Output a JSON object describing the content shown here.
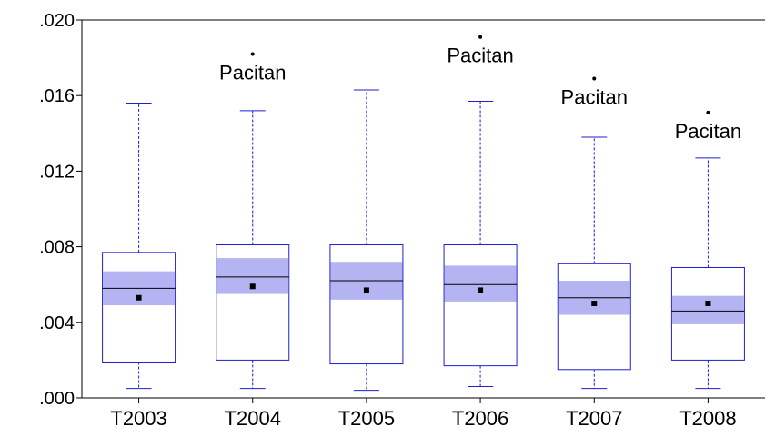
{
  "chart_data": {
    "type": "boxplot",
    "title": "",
    "xlabel": "",
    "ylabel": "",
    "ylim": [
      0.0,
      0.02
    ],
    "yticks": [
      0.0,
      0.004,
      0.008,
      0.012,
      0.016,
      0.02
    ],
    "ytick_labels": [
      ".000",
      ".004",
      ".008",
      ".012",
      ".016",
      ".020"
    ],
    "grid": false,
    "categories": [
      "T2003",
      "T2004",
      "T2005",
      "T2006",
      "T2007",
      "T2008"
    ],
    "boxes": [
      {
        "category": "T2003",
        "whisker_low": 0.0005,
        "q1": 0.0019,
        "median": 0.0058,
        "q3": 0.0077,
        "whisker_high": 0.0156,
        "mean": 0.0053,
        "ci_low": 0.0049,
        "ci_high": 0.0067,
        "outliers": []
      },
      {
        "category": "T2004",
        "whisker_low": 0.0005,
        "q1": 0.002,
        "median": 0.0064,
        "q3": 0.0081,
        "whisker_high": 0.0152,
        "mean": 0.0059,
        "ci_low": 0.0055,
        "ci_high": 0.0074,
        "outliers": [
          {
            "value": 0.0182,
            "label": "Pacitan"
          }
        ]
      },
      {
        "category": "T2005",
        "whisker_low": 0.0004,
        "q1": 0.0018,
        "median": 0.0062,
        "q3": 0.0081,
        "whisker_high": 0.0163,
        "mean": 0.0057,
        "ci_low": 0.0052,
        "ci_high": 0.0072,
        "outliers": []
      },
      {
        "category": "T2006",
        "whisker_low": 0.0006,
        "q1": 0.0017,
        "median": 0.006,
        "q3": 0.0081,
        "whisker_high": 0.0157,
        "mean": 0.0057,
        "ci_low": 0.0051,
        "ci_high": 0.007,
        "outliers": [
          {
            "value": 0.0191,
            "label": "Pacitan"
          }
        ]
      },
      {
        "category": "T2007",
        "whisker_low": 0.0005,
        "q1": 0.0015,
        "median": 0.0053,
        "q3": 0.0071,
        "whisker_high": 0.0138,
        "mean": 0.005,
        "ci_low": 0.0044,
        "ci_high": 0.0062,
        "outliers": [
          {
            "value": 0.0169,
            "label": "Pacitan"
          }
        ]
      },
      {
        "category": "T2008",
        "whisker_low": 0.0005,
        "q1": 0.002,
        "median": 0.0046,
        "q3": 0.0069,
        "whisker_high": 0.0127,
        "mean": 0.005,
        "ci_low": 0.0039,
        "ci_high": 0.0054,
        "outliers": [
          {
            "value": 0.0151,
            "label": "Pacitan"
          }
        ]
      }
    ],
    "colors": {
      "box_edge": "#1f1fd0",
      "ci_fill": "#b4b4f2",
      "median_line": "#000000",
      "axis": "#000000",
      "mean_marker": "#000000"
    }
  }
}
